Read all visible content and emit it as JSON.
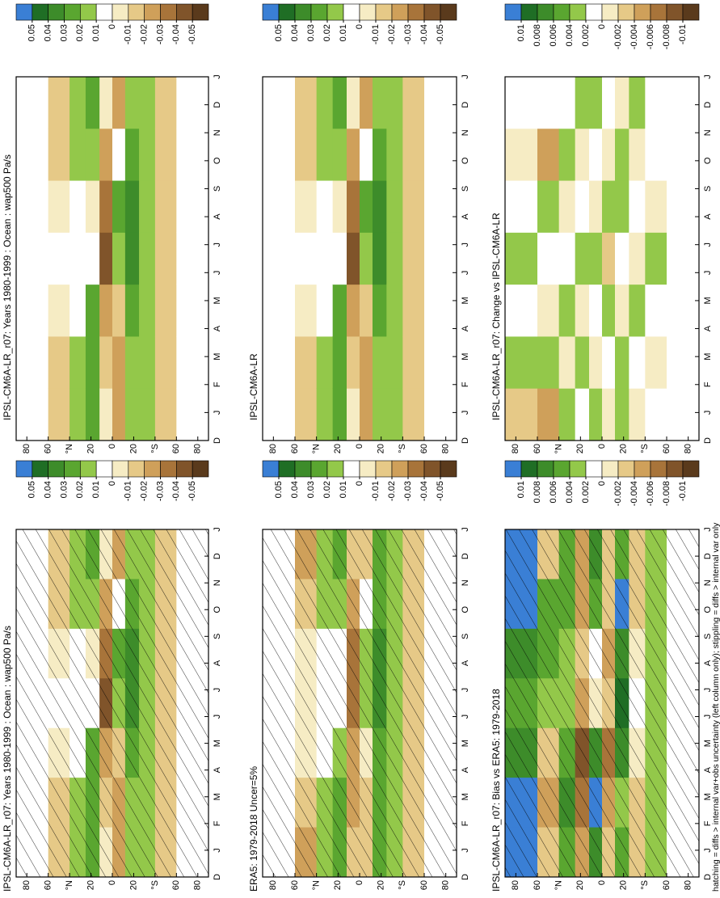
{
  "caption": "hatching = diffs > internal var+obs uncertainty (left column only); stippling = diffs > internal var only",
  "chart_data": [
    {
      "type": "heatmap",
      "title": "IPSL-CM6A-LR_r07: Years 1980-1999 : Ocean : wap500 Pa/s",
      "hatching": true,
      "categories": [
        "D",
        "J",
        "F",
        "M",
        "A",
        "M",
        "J",
        "J",
        "A",
        "S",
        "O",
        "N",
        "D",
        "J"
      ],
      "ylim": [
        -90,
        90
      ],
      "yticks": [
        80,
        60,
        {
          "value": 40,
          "label": "°N"
        },
        20,
        0,
        {
          "value": -20,
          "label": "20"
        },
        {
          "value": -40,
          "label": "°S"
        },
        {
          "value": -60,
          "label": "60"
        },
        {
          "value": -80,
          "label": "80"
        }
      ],
      "lat_edges": [
        90,
        60,
        40,
        25,
        12,
        0,
        -12,
        -25,
        -40,
        -60,
        -90
      ],
      "values": [
        [
          0,
          0,
          0,
          0,
          0,
          0,
          0
        ],
        [
          -0.02,
          -0.02,
          -0.01,
          0,
          -0.01,
          -0.02,
          -0.02
        ],
        [
          0.01,
          0.01,
          0,
          0,
          0,
          0.01,
          0.01
        ],
        [
          0.02,
          0.02,
          0.02,
          0,
          -0.01,
          0.01,
          0.02
        ],
        [
          -0.01,
          -0.02,
          -0.03,
          -0.05,
          -0.04,
          -0.03,
          -0.01
        ],
        [
          -0.03,
          -0.03,
          -0.02,
          0.01,
          0.02,
          0,
          -0.03
        ],
        [
          0.01,
          0.01,
          0.02,
          0.03,
          0.03,
          0.02,
          0.01
        ],
        [
          0.01,
          0.01,
          0.01,
          0.01,
          0.01,
          0.01,
          0.01
        ],
        [
          -0.02,
          -0.02,
          -0.02,
          -0.02,
          -0.02,
          -0.02,
          -0.02
        ],
        [
          0,
          0,
          0,
          0,
          0,
          0,
          0
        ]
      ],
      "colorbar_ticks": [
        0.05,
        0.04,
        0.03,
        0.02,
        0.01,
        0,
        -0.01,
        -0.02,
        -0.03,
        -0.04,
        -0.05
      ],
      "colors": [
        "#3a7fd5",
        "#1f6e25",
        "#3d8c2a",
        "#5aa630",
        "#93c84a",
        "#ffffff",
        "#f6ecc4",
        "#e6c987",
        "#cfa05a",
        "#a8743a",
        "#80542a",
        "#5a3a1c"
      ]
    },
    {
      "type": "heatmap",
      "title": "IPSL-CM6A-LR_r07: Years 1980-1999 : Ocean : wap500 Pa/s",
      "hatching": false,
      "categories": [
        "D",
        "J",
        "F",
        "M",
        "A",
        "M",
        "J",
        "J",
        "A",
        "S",
        "O",
        "N",
        "D",
        "J"
      ],
      "ylim": [
        -90,
        90
      ],
      "yticks": [
        80,
        60,
        {
          "value": 40,
          "label": "°N"
        },
        20,
        0,
        {
          "value": -20,
          "label": "20"
        },
        {
          "value": -40,
          "label": "°S"
        },
        {
          "value": -60,
          "label": "60"
        },
        {
          "value": -80,
          "label": "80"
        }
      ],
      "lat_edges": [
        90,
        60,
        40,
        25,
        12,
        0,
        -12,
        -25,
        -40,
        -60,
        -90
      ],
      "values": [
        [
          0,
          0,
          0,
          0,
          0,
          0,
          0
        ],
        [
          -0.02,
          -0.02,
          -0.01,
          0,
          -0.01,
          -0.02,
          -0.02
        ],
        [
          0.01,
          0.01,
          0,
          0,
          0,
          0.01,
          0.01
        ],
        [
          0.02,
          0.02,
          0.02,
          0,
          -0.01,
          0.01,
          0.02
        ],
        [
          -0.01,
          -0.02,
          -0.03,
          -0.05,
          -0.04,
          -0.03,
          -0.01
        ],
        [
          -0.03,
          -0.03,
          -0.02,
          0.01,
          0.02,
          0,
          -0.03
        ],
        [
          0.01,
          0.01,
          0.02,
          0.03,
          0.03,
          0.02,
          0.01
        ],
        [
          0.01,
          0.01,
          0.01,
          0.01,
          0.01,
          0.01,
          0.01
        ],
        [
          -0.02,
          -0.02,
          -0.02,
          -0.02,
          -0.02,
          -0.02,
          -0.02
        ],
        [
          0,
          0,
          0,
          0,
          0,
          0,
          0
        ]
      ],
      "colorbar_ticks": [
        0.05,
        0.04,
        0.03,
        0.02,
        0.01,
        0,
        -0.01,
        -0.02,
        -0.03,
        -0.04,
        -0.05
      ],
      "colors": [
        "#3a7fd5",
        "#1f6e25",
        "#3d8c2a",
        "#5aa630",
        "#93c84a",
        "#ffffff",
        "#f6ecc4",
        "#e6c987",
        "#cfa05a",
        "#a8743a",
        "#80542a",
        "#5a3a1c"
      ]
    },
    {
      "type": "heatmap",
      "title": "ERA5: 1979-2018 Uncer=5%",
      "hatching": true,
      "categories": [
        "D",
        "J",
        "F",
        "M",
        "A",
        "M",
        "J",
        "J",
        "A",
        "S",
        "O",
        "N",
        "D",
        "J"
      ],
      "ylim": [
        -90,
        90
      ],
      "yticks": [
        80,
        60,
        {
          "value": 40,
          "label": "°N"
        },
        20,
        0,
        {
          "value": -20,
          "label": "20"
        },
        {
          "value": -40,
          "label": "°S"
        },
        {
          "value": -60,
          "label": "60"
        },
        {
          "value": -80,
          "label": "80"
        }
      ],
      "lat_edges": [
        90,
        60,
        40,
        25,
        12,
        0,
        -12,
        -25,
        -40,
        -60,
        -90
      ],
      "values": [
        [
          0,
          0,
          0,
          0,
          0,
          0,
          0
        ],
        [
          -0.03,
          -0.02,
          -0.01,
          -0.01,
          -0.01,
          -0.02,
          -0.03
        ],
        [
          0.01,
          0.01,
          0,
          0,
          0,
          0.01,
          0.01
        ],
        [
          0.02,
          0.02,
          0.01,
          0,
          0,
          0.01,
          0.02
        ],
        [
          -0.02,
          -0.03,
          -0.03,
          -0.04,
          -0.04,
          -0.03,
          -0.02
        ],
        [
          -0.02,
          -0.02,
          -0.01,
          0.01,
          0.01,
          0,
          -0.02
        ],
        [
          0.02,
          0.02,
          0.02,
          0.03,
          0.03,
          0.02,
          0.02
        ],
        [
          0.01,
          0.01,
          0.01,
          0.01,
          0.01,
          0.01,
          0.01
        ],
        [
          -0.02,
          -0.02,
          -0.02,
          -0.02,
          -0.02,
          -0.02,
          -0.02
        ],
        [
          0,
          0,
          0,
          0,
          0,
          0,
          0
        ]
      ],
      "colorbar_ticks": [
        0.05,
        0.04,
        0.03,
        0.02,
        0.01,
        0,
        -0.01,
        -0.02,
        -0.03,
        -0.04,
        -0.05
      ],
      "colors": [
        "#3a7fd5",
        "#1f6e25",
        "#3d8c2a",
        "#5aa630",
        "#93c84a",
        "#ffffff",
        "#f6ecc4",
        "#e6c987",
        "#cfa05a",
        "#a8743a",
        "#80542a",
        "#5a3a1c"
      ]
    },
    {
      "type": "heatmap",
      "title": "IPSL-CM6A-LR",
      "hatching": false,
      "categories": [
        "D",
        "J",
        "F",
        "M",
        "A",
        "M",
        "J",
        "J",
        "A",
        "S",
        "O",
        "N",
        "D",
        "J"
      ],
      "ylim": [
        -90,
        90
      ],
      "yticks": [
        80,
        60,
        {
          "value": 40,
          "label": "°N"
        },
        20,
        0,
        {
          "value": -20,
          "label": "20"
        },
        {
          "value": -40,
          "label": "°S"
        },
        {
          "value": -60,
          "label": "60"
        },
        {
          "value": -80,
          "label": "80"
        }
      ],
      "lat_edges": [
        90,
        60,
        40,
        25,
        12,
        0,
        -12,
        -25,
        -40,
        -60,
        -90
      ],
      "values": [
        [
          0,
          0,
          0,
          0,
          0,
          0,
          0
        ],
        [
          -0.02,
          -0.02,
          -0.01,
          0,
          -0.01,
          -0.02,
          -0.02
        ],
        [
          0.01,
          0.01,
          0,
          0,
          0,
          0.01,
          0.01
        ],
        [
          0.02,
          0.02,
          0.02,
          0,
          -0.01,
          0.01,
          0.02
        ],
        [
          -0.01,
          -0.02,
          -0.03,
          -0.05,
          -0.04,
          -0.03,
          -0.01
        ],
        [
          -0.03,
          -0.03,
          -0.02,
          0.01,
          0.02,
          0,
          -0.03
        ],
        [
          0.01,
          0.01,
          0.02,
          0.03,
          0.03,
          0.02,
          0.01
        ],
        [
          0.01,
          0.01,
          0.01,
          0.01,
          0.01,
          0.01,
          0.01
        ],
        [
          -0.02,
          -0.02,
          -0.02,
          -0.02,
          -0.02,
          -0.02,
          -0.02
        ],
        [
          0,
          0,
          0,
          0,
          0,
          0,
          0
        ]
      ],
      "colorbar_ticks": [
        0.05,
        0.04,
        0.03,
        0.02,
        0.01,
        0,
        -0.01,
        -0.02,
        -0.03,
        -0.04,
        -0.05
      ],
      "colors": [
        "#3a7fd5",
        "#1f6e25",
        "#3d8c2a",
        "#5aa630",
        "#93c84a",
        "#ffffff",
        "#f6ecc4",
        "#e6c987",
        "#cfa05a",
        "#a8743a",
        "#80542a",
        "#5a3a1c"
      ]
    },
    {
      "type": "heatmap",
      "title": "IPSL-CM6A-LR_r07: Bias vs ERA5: 1979-2018",
      "hatching": true,
      "categories": [
        "D",
        "J",
        "F",
        "M",
        "A",
        "M",
        "J",
        "J",
        "A",
        "S",
        "O",
        "N",
        "D",
        "J"
      ],
      "ylim": [
        -90,
        90
      ],
      "yticks": [
        80,
        60,
        {
          "value": 40,
          "label": "°N"
        },
        20,
        0,
        {
          "value": -20,
          "label": "20"
        },
        {
          "value": -40,
          "label": "°S"
        },
        {
          "value": -60,
          "label": "60"
        },
        {
          "value": -80,
          "label": "80"
        }
      ],
      "lat_edges": [
        90,
        60,
        40,
        25,
        12,
        0,
        -12,
        -25,
        -40,
        -60,
        -90
      ],
      "values": [
        [
          0.01,
          0.01,
          0.006,
          0.004,
          0.006,
          0.01,
          0.01
        ],
        [
          -0.004,
          -0.006,
          -0.004,
          0.002,
          0.004,
          0.004,
          -0.004
        ],
        [
          0.004,
          0.006,
          0.004,
          0.002,
          0.002,
          0.004,
          0.004
        ],
        [
          -0.006,
          -0.008,
          -0.01,
          -0.006,
          -0.004,
          -0.006,
          -0.006
        ],
        [
          0.006,
          0.01,
          0.006,
          -0.002,
          0,
          0.004,
          0.006
        ],
        [
          -0.004,
          -0.006,
          -0.008,
          -0.004,
          -0.006,
          -0.004,
          -0.004
        ],
        [
          0.004,
          0.002,
          0.006,
          0.008,
          0.006,
          0.01,
          0.004
        ],
        [
          -0.004,
          -0.004,
          -0.002,
          0,
          -0.002,
          -0.004,
          -0.004
        ],
        [
          0.002,
          0.002,
          0.002,
          0.002,
          0.002,
          0.002,
          0.002
        ],
        [
          0,
          0,
          0,
          0,
          0,
          0,
          0
        ]
      ],
      "colorbar_ticks": [
        0.01,
        0.008,
        0.006,
        0.004,
        0.002,
        0,
        -0.002,
        -0.004,
        -0.006,
        -0.008,
        -0.01
      ],
      "colors": [
        "#3a7fd5",
        "#1f6e25",
        "#3d8c2a",
        "#5aa630",
        "#93c84a",
        "#ffffff",
        "#f6ecc4",
        "#e6c987",
        "#cfa05a",
        "#a8743a",
        "#80542a",
        "#5a3a1c"
      ]
    },
    {
      "type": "heatmap",
      "title": "IPSL-CM6A-LR_r07: Change vs IPSL-CM6A-LR",
      "hatching": false,
      "categories": [
        "D",
        "J",
        "F",
        "M",
        "A",
        "M",
        "J",
        "J",
        "A",
        "S",
        "O",
        "N",
        "D",
        "J"
      ],
      "ylim": [
        -90,
        90
      ],
      "yticks": [
        80,
        60,
        {
          "value": 40,
          "label": "°N"
        },
        20,
        0,
        {
          "value": -20,
          "label": "20"
        },
        {
          "value": -40,
          "label": "°S"
        },
        {
          "value": -60,
          "label": "60"
        },
        {
          "value": -80,
          "label": "80"
        }
      ],
      "lat_edges": [
        90,
        60,
        40,
        25,
        12,
        0,
        -12,
        -25,
        -40,
        -60,
        -90
      ],
      "values": [
        [
          -0.004,
          0.002,
          0,
          0.002,
          0,
          -0.002,
          0
        ],
        [
          -0.006,
          0.002,
          -0.002,
          0,
          0.002,
          -0.006,
          0
        ],
        [
          0.002,
          -0.002,
          0.002,
          0,
          -0.002,
          0.002,
          0
        ],
        [
          0,
          0.002,
          -0.002,
          0.002,
          0,
          -0.002,
          0.002
        ],
        [
          0.002,
          -0.002,
          0,
          0.002,
          -0.002,
          0,
          0.002
        ],
        [
          -0.002,
          0,
          0.002,
          -0.004,
          0.002,
          -0.002,
          0
        ],
        [
          0.002,
          0.002,
          -0.002,
          0,
          0.002,
          0.002,
          -0.002
        ],
        [
          -0.002,
          0,
          0.002,
          -0.002,
          0,
          -0.002,
          0.002
        ],
        [
          0,
          -0.002,
          0,
          0.002,
          -0.002,
          0,
          0
        ],
        [
          0,
          0,
          0,
          0,
          0,
          0,
          0
        ]
      ],
      "colorbar_ticks": [
        0.01,
        0.008,
        0.006,
        0.004,
        0.002,
        0,
        -0.002,
        -0.004,
        -0.006,
        -0.008,
        -0.01
      ],
      "colors": [
        "#3a7fd5",
        "#1f6e25",
        "#3d8c2a",
        "#5aa630",
        "#93c84a",
        "#ffffff",
        "#f6ecc4",
        "#e6c987",
        "#cfa05a",
        "#a8743a",
        "#80542a",
        "#5a3a1c"
      ]
    }
  ]
}
